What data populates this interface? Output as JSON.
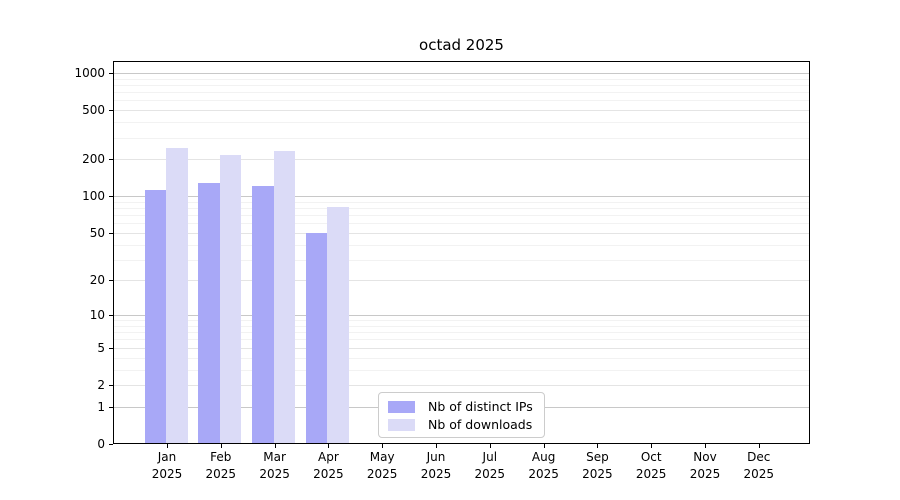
{
  "chart_data": {
    "type": "bar",
    "title": "octad 2025",
    "categories": [
      "Jan",
      "Feb",
      "Mar",
      "Apr",
      "May",
      "Jun",
      "Jul",
      "Aug",
      "Sep",
      "Oct",
      "Nov",
      "Dec"
    ],
    "year": "2025",
    "series": [
      {
        "name": "Nb of distinct IPs",
        "color": "#a8a8f7",
        "values": [
          113,
          129,
          120,
          50,
          0,
          0,
          0,
          0,
          0,
          0,
          0,
          0
        ]
      },
      {
        "name": "Nb of downloads",
        "color": "#dbdbf7",
        "values": [
          246,
          215,
          233,
          81,
          0,
          0,
          0,
          0,
          0,
          0,
          0,
          0
        ]
      }
    ],
    "y_scale": "log1p",
    "y_ticks": [
      0,
      1,
      2,
      5,
      10,
      20,
      50,
      100,
      200,
      500,
      1000
    ],
    "y_minor_ticks": [
      3,
      4,
      6,
      7,
      8,
      9,
      30,
      40,
      60,
      70,
      80,
      90,
      300,
      400,
      600,
      700,
      800,
      900
    ],
    "ylim": [
      0,
      1250
    ],
    "grid": true,
    "legend_position": "lower center-left inside plot"
  },
  "legend": {
    "items": [
      {
        "label": "Nb of distinct IPs",
        "color": "#a8a8f7"
      },
      {
        "label": "Nb of downloads",
        "color": "#dbdbf7"
      }
    ]
  },
  "colors": {
    "grid_major": "#c8c8c8",
    "grid_mid": "#e4e4e4",
    "grid_minor": "#f2f2f2",
    "spine": "#000000",
    "background": "#ffffff"
  }
}
